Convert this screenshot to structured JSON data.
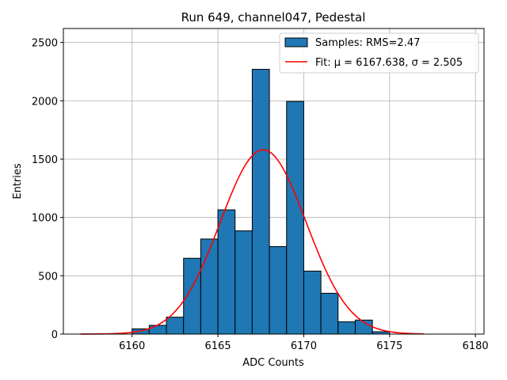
{
  "chart_data": {
    "type": "bar",
    "title": "Run 649, channel047, Pedestal",
    "xlabel": "ADC Counts",
    "ylabel": "Entries",
    "xlim": [
      6156,
      6180.5
    ],
    "ylim": [
      0,
      2620
    ],
    "xticks": [
      6160,
      6165,
      6170,
      6175,
      6180
    ],
    "yticks": [
      0,
      500,
      1000,
      1500,
      2000,
      2500
    ],
    "grid": true,
    "legend_position": "top-right",
    "histogram": {
      "name": "Samples: RMS=2.47",
      "color": "#1f77b4",
      "edge_color": "#000000",
      "bin_width": 1,
      "bin_starts": [
        6160,
        6161,
        6162,
        6163,
        6164,
        6165,
        6166,
        6167,
        6168,
        6169,
        6170,
        6171,
        6172,
        6173,
        6174
      ],
      "values": [
        45,
        75,
        145,
        650,
        815,
        1065,
        885,
        2270,
        750,
        1995,
        540,
        350,
        105,
        120,
        20
      ]
    },
    "fit": {
      "name": "Fit: μ = 6167.638, σ = 2.505",
      "color": "#ff0000",
      "mu": 6167.638,
      "sigma": 2.505,
      "peak": 1580,
      "x_range": [
        6157,
        6177
      ]
    }
  }
}
